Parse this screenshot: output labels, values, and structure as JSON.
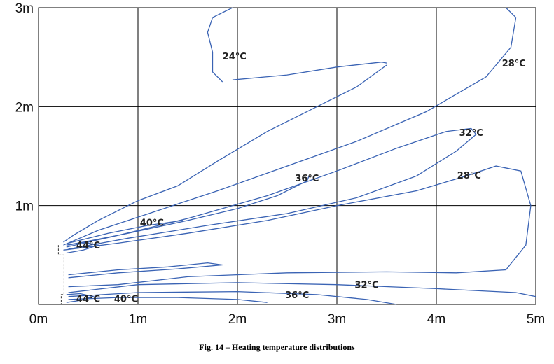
{
  "chart_data": {
    "type": "contour",
    "x_ticks": [
      "0m",
      "1m",
      "2m",
      "3m",
      "4m",
      "5m"
    ],
    "y_ticks": [
      "3m",
      "2m",
      "1m"
    ],
    "xlim": [
      0,
      5
    ],
    "ylim": [
      0,
      3
    ],
    "grid": true,
    "line_color": "#3a63b4",
    "contours": [
      {
        "label": "24°C",
        "points": [
          [
            1.85,
            2.25
          ],
          [
            1.75,
            2.35
          ],
          [
            1.75,
            2.55
          ],
          [
            1.7,
            2.75
          ],
          [
            1.75,
            2.9
          ],
          [
            1.95,
            3.0
          ]
        ]
      },
      {
        "label": "24°C",
        "points": [
          [
            1.95,
            2.27
          ],
          [
            2.5,
            2.32
          ],
          [
            3.0,
            2.4
          ],
          [
            3.45,
            2.45
          ],
          [
            3.5,
            2.44
          ]
        ]
      },
      {
        "label": "24°C",
        "points": [
          [
            3.5,
            2.42
          ],
          [
            3.2,
            2.2
          ],
          [
            2.8,
            2.0
          ],
          [
            2.3,
            1.75
          ],
          [
            1.8,
            1.45
          ],
          [
            1.4,
            1.2
          ],
          [
            1.0,
            1.05
          ],
          [
            0.6,
            0.85
          ],
          [
            0.35,
            0.7
          ],
          [
            0.25,
            0.63
          ]
        ]
      },
      {
        "label": "28°C",
        "points": [
          [
            0.25,
            0.6
          ],
          [
            0.6,
            0.75
          ],
          [
            1.2,
            0.95
          ],
          [
            1.8,
            1.15
          ],
          [
            2.5,
            1.4
          ],
          [
            3.2,
            1.65
          ],
          [
            3.9,
            1.95
          ],
          [
            4.5,
            2.3
          ],
          [
            4.75,
            2.6
          ],
          [
            4.8,
            2.9
          ],
          [
            4.7,
            3.0
          ]
        ]
      },
      {
        "label": "28°C",
        "points": [
          [
            0.25,
            0.55
          ],
          [
            0.8,
            0.62
          ],
          [
            1.5,
            0.72
          ],
          [
            2.3,
            0.85
          ],
          [
            3.0,
            1.0
          ],
          [
            3.8,
            1.15
          ],
          [
            4.3,
            1.3
          ],
          [
            4.6,
            1.4
          ],
          [
            4.85,
            1.35
          ],
          [
            4.95,
            1.0
          ],
          [
            4.9,
            0.6
          ],
          [
            4.7,
            0.35
          ],
          [
            4.2,
            0.32
          ],
          [
            3.5,
            0.33
          ],
          [
            2.5,
            0.32
          ],
          [
            1.5,
            0.28
          ],
          [
            0.8,
            0.2
          ],
          [
            0.3,
            0.18
          ]
        ]
      },
      {
        "label": "32°C",
        "points": [
          [
            0.28,
            0.58
          ],
          [
            0.8,
            0.7
          ],
          [
            1.5,
            0.87
          ],
          [
            2.3,
            1.1
          ],
          [
            3.0,
            1.35
          ],
          [
            3.6,
            1.58
          ],
          [
            4.1,
            1.75
          ],
          [
            4.35,
            1.78
          ],
          [
            4.4,
            1.72
          ],
          [
            4.2,
            1.55
          ],
          [
            3.8,
            1.3
          ],
          [
            3.2,
            1.08
          ],
          [
            2.5,
            0.92
          ],
          [
            1.7,
            0.8
          ],
          [
            0.9,
            0.67
          ],
          [
            0.3,
            0.56
          ]
        ]
      },
      {
        "label": "32°C",
        "points": [
          [
            0.3,
            0.12
          ],
          [
            1.0,
            0.2
          ],
          [
            2.0,
            0.22
          ],
          [
            3.0,
            0.2
          ],
          [
            4.0,
            0.16
          ],
          [
            4.8,
            0.12
          ],
          [
            5.0,
            0.08
          ]
        ]
      },
      {
        "label": "36°C",
        "points": [
          [
            0.3,
            0.6
          ],
          [
            0.9,
            0.72
          ],
          [
            1.5,
            0.85
          ],
          [
            2.0,
            0.97
          ],
          [
            2.4,
            1.1
          ],
          [
            2.7,
            1.25
          ],
          [
            2.72,
            1.3
          ]
        ]
      },
      {
        "label": "36°C",
        "points": [
          [
            0.3,
            0.08
          ],
          [
            1.0,
            0.12
          ],
          [
            2.0,
            0.13
          ],
          [
            2.8,
            0.1
          ],
          [
            3.3,
            0.05
          ],
          [
            3.6,
            0.0
          ]
        ]
      },
      {
        "label": "40°C",
        "points": [
          [
            0.3,
            0.62
          ],
          [
            0.7,
            0.72
          ],
          [
            1.1,
            0.8
          ],
          [
            1.45,
            0.85
          ]
        ]
      },
      {
        "label": "40°C",
        "points": [
          [
            0.3,
            0.3
          ],
          [
            0.8,
            0.35
          ],
          [
            1.3,
            0.38
          ],
          [
            1.7,
            0.42
          ],
          [
            1.85,
            0.4
          ],
          [
            1.4,
            0.36
          ],
          [
            0.8,
            0.32
          ],
          [
            0.3,
            0.27
          ]
        ]
      },
      {
        "label": "40°C",
        "points": [
          [
            0.3,
            0.05
          ],
          [
            0.8,
            0.07
          ],
          [
            1.4,
            0.07
          ],
          [
            2.0,
            0.05
          ],
          [
            2.3,
            0.02
          ]
        ]
      },
      {
        "label": "44°C",
        "points": [
          [
            0.28,
            0.6
          ],
          [
            0.45,
            0.63
          ],
          [
            0.6,
            0.6
          ],
          [
            0.45,
            0.55
          ],
          [
            0.28,
            0.52
          ]
        ]
      },
      {
        "label": "44°C",
        "points": [
          [
            0.28,
            0.1
          ],
          [
            0.42,
            0.11
          ],
          [
            0.55,
            0.08
          ],
          [
            0.42,
            0.04
          ],
          [
            0.28,
            0.02
          ]
        ]
      }
    ],
    "labels": [
      {
        "text": "24°C",
        "x": 1.97,
        "y": 2.5
      },
      {
        "text": "28°C",
        "x": 4.78,
        "y": 2.43
      },
      {
        "text": "32°C",
        "x": 4.35,
        "y": 1.73
      },
      {
        "text": "36°C",
        "x": 2.7,
        "y": 1.27
      },
      {
        "text": "28°C",
        "x": 4.33,
        "y": 1.3
      },
      {
        "text": "40°C",
        "x": 1.14,
        "y": 0.82
      },
      {
        "text": "44°C",
        "x": 0.5,
        "y": 0.59
      },
      {
        "text": "32°C",
        "x": 3.3,
        "y": 0.19
      },
      {
        "text": "36°C",
        "x": 2.6,
        "y": 0.09
      },
      {
        "text": "44°C",
        "x": 0.5,
        "y": 0.05
      },
      {
        "text": "40°C",
        "x": 0.88,
        "y": 0.05
      }
    ]
  },
  "caption": "Fig. 14 – Heating temperature distributions"
}
